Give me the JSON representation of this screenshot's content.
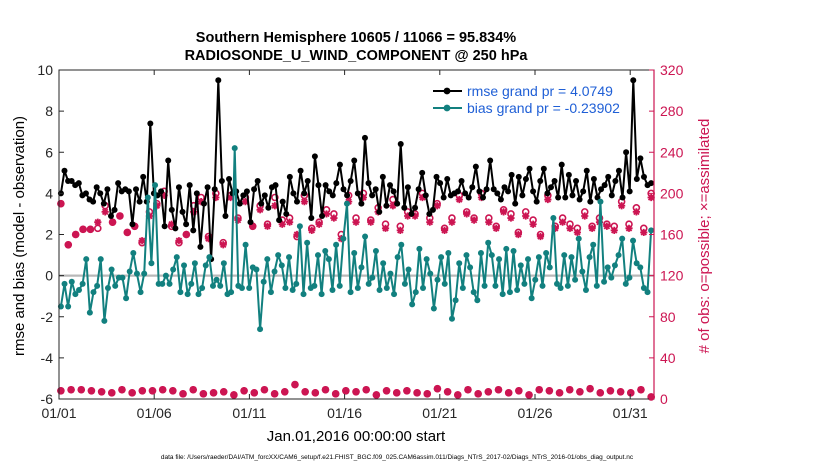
{
  "chart_data": {
    "type": "line",
    "title": "Southern Hemisphere 10605 / 11066 = 95.834%",
    "subtitle": "RADIOSONDE_U_WIND_COMPONENT @ 250 hPa",
    "xlabel": "Jan.01,2016 00:00:00 start",
    "ylabel": "rmse and bias (model - observation)",
    "y2label": "# of obs: o=possible; ×=assimilated",
    "xlim": [
      0,
      31.25
    ],
    "ylim": [
      -6,
      10
    ],
    "y2lim": [
      0,
      320
    ],
    "x_ticks": [
      0,
      5,
      10,
      15,
      20,
      25,
      30
    ],
    "x_tick_labels": [
      "01/01",
      "01/06",
      "01/11",
      "01/16",
      "01/21",
      "01/26",
      "01/31"
    ],
    "y_ticks": [
      -6,
      -4,
      -2,
      0,
      2,
      4,
      6,
      8,
      10
    ],
    "y_tick_labels": [
      "-6",
      "-4",
      "-2",
      "0",
      "2",
      "4",
      "6",
      "8",
      "10"
    ],
    "y2_ticks": [
      0,
      40,
      80,
      120,
      160,
      200,
      240,
      280,
      320
    ],
    "y2_tick_labels": [
      "0",
      "40",
      "80",
      "120",
      "160",
      "200",
      "240",
      "280",
      "320"
    ],
    "colors": {
      "rmse": "#000000",
      "bias": "#12807f",
      "obs": "#cc1552",
      "zero_line": "#b8b8b8",
      "legend_text": "#1f5fd6"
    },
    "legend": {
      "rmse": "rmse grand pr = 4.0749",
      "bias": "bias grand pr = -0.23902"
    },
    "footnote": "data file: /Users/raeder/DAI/ATM_forcXX/CAM6_setup/f.e21.FHIST_BGC.f09_025.CAM6assim.011/Diags_NTrS_2017-02/Diags_NTrS_2016-01/obs_diag_output.nc",
    "series": [
      {
        "name": "rmse",
        "values": [
          4.0,
          5.1,
          4.6,
          4.6,
          4.4,
          4.5,
          3.9,
          4.0,
          3.7,
          3.6,
          4.3,
          4.0,
          3.5,
          4.2,
          2.9,
          3.2,
          4.5,
          4.1,
          4.2,
          4.1,
          2.5,
          4.2,
          3.6,
          4.8,
          3.6,
          7.4,
          4.0,
          3.9,
          4.1,
          2.4,
          5.6,
          3.2,
          2.3,
          4.3,
          3.1,
          2.5,
          4.4,
          2.2,
          4.0,
          1.4,
          3.5,
          4.3,
          0.8,
          4.2,
          9.5,
          4.6,
          2.9,
          4.7,
          4.0,
          4.1,
          3.5,
          3.9,
          4.1,
          2.6,
          4.2,
          4.6,
          3.5,
          3.9,
          3.3,
          4.3,
          4.4,
          2.7,
          3.6,
          3.0,
          4.8,
          4.0,
          3.6,
          5.1,
          4.0,
          4.6,
          2.8,
          5.8,
          4.4,
          2.9,
          4.4,
          4.1,
          3.9,
          4.5,
          5.4,
          4.2,
          3.9,
          4.6,
          5.6,
          4.0,
          3.5,
          6.7,
          4.5,
          3.9,
          4.2,
          3.1,
          4.8,
          3.4,
          4.4,
          4.1,
          3.5,
          6.4,
          3.3,
          4.3,
          3.0,
          3.3,
          4.2,
          5.0,
          3.9,
          3.0,
          3.2,
          4.8,
          4.5,
          3.8,
          4.7,
          3.9,
          4.0,
          4.1,
          4.6,
          4.0,
          3.8,
          4.3,
          5.3,
          4.1,
          3.8,
          4.2,
          5.6,
          4.2,
          4.0,
          3.7,
          4.3,
          4.1,
          4.9,
          3.5,
          4.8,
          3.9,
          4.7,
          5.2,
          4.1,
          3.6,
          4.6,
          5.2,
          4.0,
          4.3,
          4.6,
          3.8,
          5.4,
          3.8,
          4.9,
          3.9,
          4.6,
          3.7,
          4.1,
          5.1,
          3.6,
          4.7,
          3.8,
          4.2,
          4.4,
          4.8,
          3.9,
          4.6,
          5.1,
          3.8,
          6.0,
          4.1,
          9.5,
          4.7,
          5.7,
          4.8,
          4.4,
          4.5
        ]
      },
      {
        "name": "bias",
        "values": [
          -1.5,
          -0.4,
          -1.5,
          -0.3,
          -0.9,
          -0.7,
          -0.4,
          0.8,
          -1.8,
          -0.8,
          -0.5,
          0.8,
          -2.2,
          -0.6,
          0.3,
          -0.5,
          -0.1,
          -0.1,
          -1.1,
          0.2,
          1.1,
          0.1,
          -0.8,
          0.1,
          3.8,
          0.6,
          4.4,
          -0.4,
          -0.4,
          0.0,
          -0.4,
          0.3,
          0.9,
          -0.8,
          0.5,
          -0.9,
          -0.4,
          0.6,
          -0.9,
          -0.6,
          0.5,
          0.9,
          -0.5,
          -0.2,
          -0.5,
          0.6,
          -0.9,
          -0.8,
          6.2,
          -0.5,
          -0.6,
          1.5,
          -0.6,
          0.4,
          0.3,
          -2.6,
          -0.3,
          0.8,
          -0.8,
          0.2,
          1.0,
          0.5,
          -0.6,
          0.9,
          -0.7,
          -0.4,
          2.4,
          -0.9,
          1.6,
          -0.6,
          -0.5,
          1.0,
          -0.9,
          1.2,
          0.8,
          -0.7,
          1.5,
          -0.5,
          1.8,
          3.5,
          -0.8,
          1.1,
          -0.6,
          0.4,
          1.9,
          -0.4,
          -0.1,
          1.2,
          -0.7,
          0.6,
          -0.6,
          0.1,
          -0.9,
          0.9,
          1.5,
          -0.4,
          0.3,
          -1.4,
          -0.8,
          1.3,
          -0.6,
          0.8,
          0.1,
          -1.6,
          -0.2,
          0.9,
          -0.4,
          1.1,
          -2.1,
          -1.2,
          0.6,
          -0.6,
          1.0,
          0.4,
          -0.8,
          -1.2,
          1.1,
          -0.5,
          1.6,
          1.0,
          -0.5,
          0.8,
          -0.9,
          1.3,
          -0.8,
          1.2,
          -0.7,
          0.5,
          -0.4,
          0.8,
          -1.1,
          -0.2,
          0.9,
          -0.5,
          1.1,
          0.4,
          2.8,
          -0.4,
          -0.6,
          1.0,
          -0.5,
          0.9,
          -0.2,
          1.8,
          0.2,
          -0.7,
          0.9,
          1.5,
          -0.5,
          3.6,
          -0.3,
          0.4,
          -0.1,
          0.5,
          1.0,
          1.8,
          -0.4,
          -0.1,
          1.7,
          0.6,
          0.4,
          -0.6,
          -0.8,
          2.2
        ]
      },
      {
        "name": "possible",
        "values": [
          190,
          150,
          160,
          165,
          165,
          166,
          188,
          172,
          178,
          162,
          168,
          152,
          182,
          190,
          202,
          168,
          152,
          160,
          188,
          196,
          158,
          200,
          152,
          198,
          176,
          196,
          168,
          188,
          170,
          196,
          174,
          176,
          158,
          198,
          166,
          172,
          184,
          180,
          160,
          198,
          176,
          200,
          174,
          186,
          170,
          194,
          168,
          182,
          180,
          200,
          176,
          190,
          166,
          176,
          198,
          182,
          176,
          200,
          176,
          168,
          184,
          180,
          162,
          182,
          174,
          160,
          198,
          168,
          176,
          170,
          166,
          182,
          168,
          176,
          170,
          168,
          192,
          170,
          186,
          166,
          200
        ]
      },
      {
        "name": "assimilated",
        "values": [
          190,
          150,
          160,
          165,
          165,
          172,
          182,
          172,
          178,
          162,
          168,
          154,
          178,
          188,
          198,
          170,
          154,
          160,
          182,
          192,
          156,
          196,
          150,
          196,
          174,
          192,
          168,
          184,
          168,
          188,
          170,
          172,
          160,
          192,
          164,
          170,
          180,
          176,
          156,
          192,
          172,
          196,
          172,
          182,
          166,
          188,
          164,
          178,
          178,
          196,
          172,
          188,
          164,
          172,
          194,
          180,
          174,
          196,
          172,
          166,
          182,
          176,
          160,
          178,
          170,
          158,
          194,
          166,
          172,
          166,
          162,
          178,
          166,
          172,
          168,
          164,
          188,
          166,
          182,
          162,
          196
        ]
      },
      {
        "name": "possible_low",
        "values": [
          8,
          9,
          9,
          8,
          7,
          6,
          9,
          6,
          8,
          8,
          9,
          8,
          5,
          9,
          5,
          6,
          7,
          4,
          8,
          6,
          9,
          5,
          7,
          14,
          7,
          6,
          9,
          5,
          8,
          7,
          9,
          4,
          8,
          6,
          8,
          6,
          5,
          10,
          7,
          4,
          9,
          5,
          7,
          9,
          6,
          8,
          4,
          9,
          8,
          6,
          9,
          7,
          10,
          6,
          8,
          7,
          6,
          9,
          2
        ]
      },
      {
        "name": "assimilated_low",
        "values": [
          8,
          9,
          9,
          8,
          7,
          6,
          9,
          6,
          8,
          8,
          9,
          8,
          5,
          9,
          5,
          6,
          7,
          4,
          8,
          6,
          9,
          5,
          7,
          14,
          7,
          6,
          9,
          5,
          8,
          7,
          9,
          4,
          8,
          6,
          8,
          6,
          5,
          10,
          7,
          4,
          9,
          5,
          7,
          9,
          6,
          8,
          4,
          9,
          8,
          6,
          9,
          7,
          10,
          6,
          8,
          7,
          6,
          9,
          2
        ]
      }
    ]
  }
}
